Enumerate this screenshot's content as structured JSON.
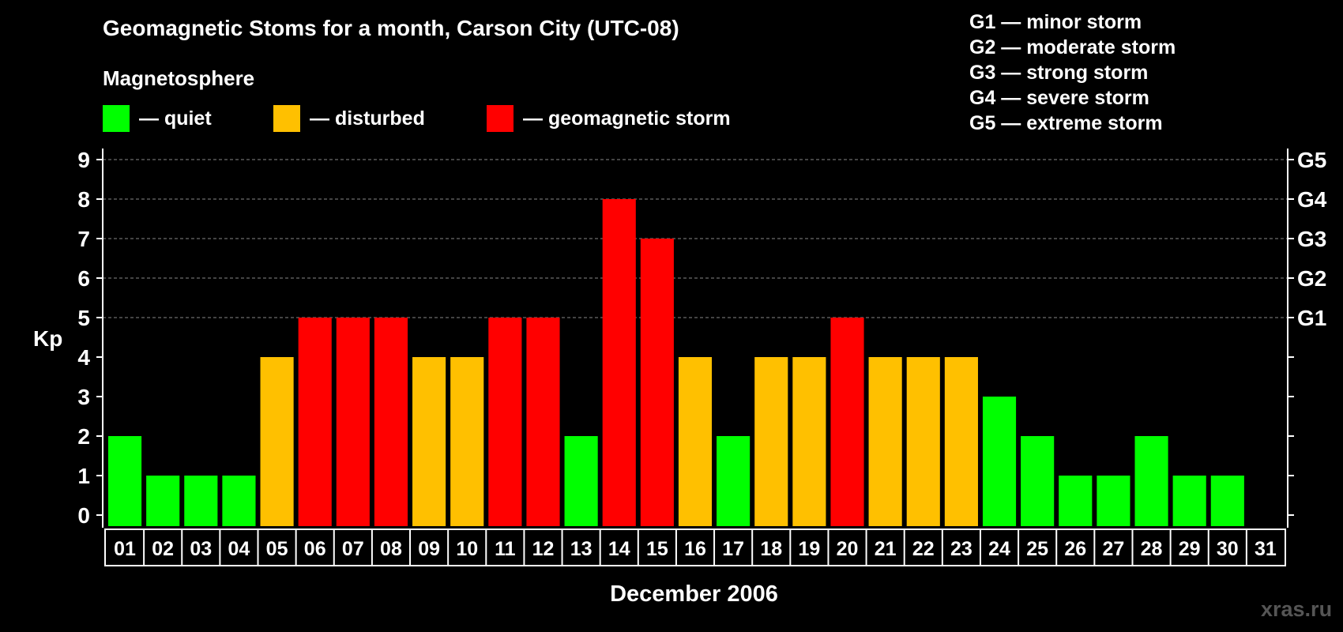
{
  "header": {
    "title": "Geomagnetic Stoms for a month, Carson City (UTC-08)",
    "magnetosphere_heading": "Magnetosphere"
  },
  "legend": {
    "quiet": {
      "label": "— quiet",
      "color": "#00ff00"
    },
    "disturbed": {
      "label": "— disturbed",
      "color": "#ffc000"
    },
    "storm": {
      "label": "— geomagnetic storm",
      "color": "#ff0000"
    }
  },
  "g_scale": [
    "G1 — minor storm",
    "G2 — moderate storm",
    "G3 — strong storm",
    "G4 — severe storm",
    "G5 — extreme storm"
  ],
  "watermark": "xras.ru",
  "chart_data": {
    "type": "bar",
    "title": "Geomagnetic Stoms for a month, Carson City (UTC-08)",
    "xlabel": "December 2006",
    "ylabel": "Kp",
    "ylim": [
      0,
      9
    ],
    "grid": true,
    "categories": [
      "01",
      "02",
      "03",
      "04",
      "05",
      "06",
      "07",
      "08",
      "09",
      "10",
      "11",
      "12",
      "13",
      "14",
      "15",
      "16",
      "17",
      "18",
      "19",
      "20",
      "21",
      "22",
      "23",
      "24",
      "25",
      "26",
      "27",
      "28",
      "29",
      "30",
      "31"
    ],
    "values": [
      2,
      1,
      1,
      1,
      4,
      5,
      5,
      5,
      4,
      4,
      5,
      5,
      2,
      8,
      7,
      4,
      2,
      4,
      4,
      5,
      4,
      4,
      4,
      3,
      2,
      1,
      1,
      2,
      1,
      1,
      null
    ],
    "y_ticks": [
      0,
      1,
      2,
      3,
      4,
      5,
      6,
      7,
      8,
      9
    ],
    "right_axis_labels": [
      {
        "kp": 5,
        "label": "G1"
      },
      {
        "kp": 6,
        "label": "G2"
      },
      {
        "kp": 7,
        "label": "G3"
      },
      {
        "kp": 8,
        "label": "G4"
      },
      {
        "kp": 9,
        "label": "G5"
      }
    ],
    "colors": {
      "quiet": "#00ff00",
      "disturbed": "#ffc000",
      "storm": "#ff0000"
    },
    "axis_color": "#ffffff",
    "grid_color": "#888888"
  }
}
